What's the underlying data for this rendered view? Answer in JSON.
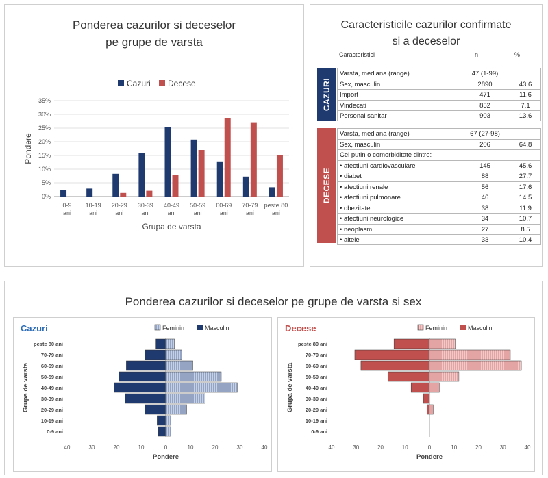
{
  "colors": {
    "cases": "#1f3a6e",
    "deaths": "#c0504d",
    "deaths_light": "#f2c9c8",
    "cases_light": "#c5d1e6",
    "table_cases_bar": "#1f3a6e",
    "table_deaths_bar": "#c0504d"
  },
  "bar_chart": {
    "title_line1": "Ponderea cazurilor si deceselor",
    "title_line2": "pe grupe de varsta",
    "legend": [
      "Cazuri",
      "Decese"
    ],
    "ylabel": "Pondere",
    "xlabel": "Grupa de varsta",
    "yticks": [
      "0%",
      "5%",
      "10%",
      "15%",
      "20%",
      "25%",
      "30%",
      "35%"
    ]
  },
  "table": {
    "title_line1": "Caracteristicile cazurilor confirmate",
    "title_line2": "si a deceselor",
    "headers": {
      "c0": "Caracteristici",
      "c1": "n",
      "c2": "%"
    },
    "cases_label": "CAZURI",
    "deaths_label": "DECESE",
    "cases_rows": [
      {
        "label": "Varsta, mediana (range)",
        "n": "47 (1-99)",
        "pct": ""
      },
      {
        "label": "Sex, masculin",
        "n": "2890",
        "pct": "43.6"
      },
      {
        "label": "Import",
        "n": "471",
        "pct": "11.6"
      },
      {
        "label": "Vindecati",
        "n": "852",
        "pct": "7.1"
      },
      {
        "label": "Personal sanitar",
        "n": "903",
        "pct": "13.6"
      }
    ],
    "deaths_rows": [
      {
        "label": "Varsta, mediana (range)",
        "n": "67 (27-98)",
        "pct": ""
      },
      {
        "label": "Sex, masculin",
        "n": "206",
        "pct": "64.8"
      },
      {
        "label": "Cel putin o comorbiditate dintre:",
        "n": "",
        "pct": ""
      },
      {
        "label": "• afectiuni cardiovasculare",
        "n": "145",
        "pct": "45.6"
      },
      {
        "label": "• diabet",
        "n": "88",
        "pct": "27.7"
      },
      {
        "label": "• afectiuni renale",
        "n": "56",
        "pct": "17.6"
      },
      {
        "label": "• afectiuni pulmonare",
        "n": "46",
        "pct": "14.5"
      },
      {
        "label": "• obezitate",
        "n": "38",
        "pct": "11.9"
      },
      {
        "label": "• afectiuni neurologice",
        "n": "34",
        "pct": "10.7"
      },
      {
        "label": "• neoplasm",
        "n": "27",
        "pct": "8.5"
      },
      {
        "label": "• altele",
        "n": "33",
        "pct": "10.4"
      }
    ]
  },
  "pyramid": {
    "title": "Ponderea cazurilor si deceselor pe grupe de varsta si sex",
    "ylabel": "Grupa de varsta",
    "xlabel": "Pondere",
    "legend_f": "Feminin",
    "legend_m": "Masculin",
    "cases_title": "Cazuri",
    "deaths_title": "Decese",
    "xticks": [
      "40",
      "30",
      "20",
      "10",
      "0",
      "10",
      "20",
      "30",
      "40"
    ]
  },
  "chart_data": [
    {
      "type": "bar",
      "title": "Ponderea cazurilor si deceselor pe grupe de varsta",
      "xlabel": "Grupa de varsta",
      "ylabel": "Pondere",
      "ylim": [
        0,
        35
      ],
      "grid": true,
      "legend": "top",
      "categories": [
        "0-9 ani",
        "10-19 ani",
        "20-29 ani",
        "30-39 ani",
        "40-49 ani",
        "50-59 ani",
        "60-69 ani",
        "70-79 ani",
        "peste 80 ani"
      ],
      "series": [
        {
          "name": "Cazuri",
          "values": [
            2.3,
            2.9,
            8.3,
            15.8,
            25.3,
            20.8,
            12.8,
            7.3,
            3.4
          ]
        },
        {
          "name": "Decese",
          "values": [
            0,
            0,
            1.3,
            2.1,
            7.8,
            17.0,
            28.7,
            27.1,
            15.2
          ]
        }
      ]
    },
    {
      "type": "bar",
      "title": "Cazuri",
      "xlabel": "Pondere",
      "ylabel": "Grupa de varsta",
      "xlim": [
        -40,
        40
      ],
      "legend": "top-right",
      "categories": [
        "0-9 ani",
        "10-19 ani",
        "20-29 ani",
        "30-39 ani",
        "40-49 ani",
        "50-59 ani",
        "60-69 ani",
        "70-79 ani",
        "peste 80 ani"
      ],
      "series": [
        {
          "name": "Feminin",
          "values": [
            2,
            2,
            8.5,
            16,
            29,
            22.5,
            11,
            6.5,
            3.5
          ]
        },
        {
          "name": "Masculin",
          "values": [
            3,
            3.5,
            8.5,
            16.5,
            21,
            19,
            16,
            8.5,
            4
          ]
        }
      ]
    },
    {
      "type": "bar",
      "title": "Decese",
      "xlabel": "Pondere",
      "ylabel": "Grupa de varsta",
      "xlim": [
        -40,
        40
      ],
      "legend": "top-right",
      "categories": [
        "0-9 ani",
        "10-19 ani",
        "20-29 ani",
        "30-39 ani",
        "40-49 ani",
        "50-59 ani",
        "60-69 ani",
        "70-79 ani",
        "peste 80 ani"
      ],
      "series": [
        {
          "name": "Feminin",
          "values": [
            0,
            0,
            1.5,
            0,
            4,
            12,
            37.5,
            33,
            10.5
          ]
        },
        {
          "name": "Masculin",
          "values": [
            0,
            0,
            1,
            2.5,
            7.5,
            17,
            28,
            30.5,
            14.5
          ]
        }
      ]
    }
  ]
}
